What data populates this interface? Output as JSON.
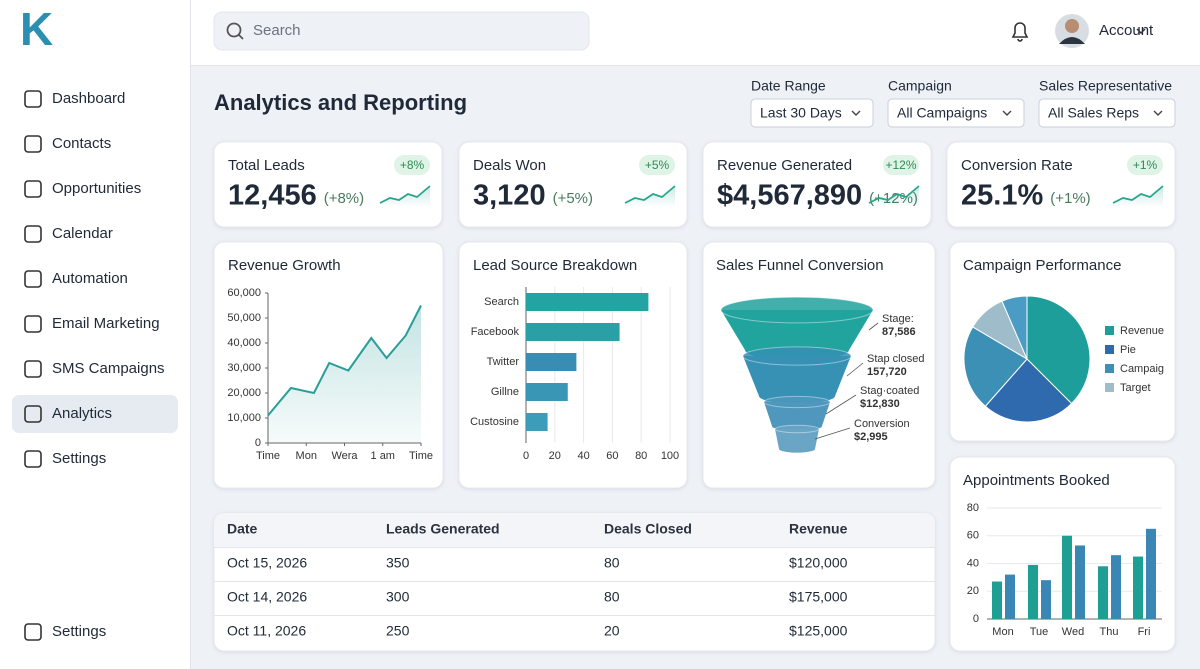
{
  "sidebar": {
    "logo": "K",
    "nav": [
      "Dashboard",
      "Contacts",
      "Opportunities",
      "Calendar",
      "Automation",
      "Email Marketing",
      "SMS Campaigns",
      "Analytics",
      "Settings"
    ],
    "active": 7,
    "footer": "Settings"
  },
  "header": {
    "search": "Search",
    "account": "Account"
  },
  "title": "Analytics and Reporting",
  "filters": [
    {
      "label": "Date Range",
      "value": "Last 30 Days"
    },
    {
      "label": "Campaign",
      "value": "All Campaigns"
    },
    {
      "label": "Sales Representative",
      "value": "All Sales Reps"
    }
  ],
  "kpis": [
    {
      "title": "Total Leads",
      "badge": "+8%",
      "value": "12,456",
      "change": "(+8%)"
    },
    {
      "title": "Deals Won",
      "badge": "+5%",
      "value": "3,120",
      "change": "(+5%)"
    },
    {
      "title": "Revenue Generated",
      "badge": "+12%",
      "value": "$4,567,890",
      "change": "(+12%)"
    },
    {
      "title": "Conversion Rate",
      "badge": "+1%",
      "value": "25.1%",
      "change": "(+1%)"
    }
  ],
  "charts": {
    "revenue_growth": {
      "type": "line",
      "title": "Revenue Growth",
      "color": "#2a9d99",
      "x": [
        0,
        0.6,
        1.2,
        1.6,
        2.1,
        2.7,
        3.1,
        3.6,
        4
      ],
      "values": [
        11000,
        22000,
        20000,
        32000,
        29000,
        42000,
        34000,
        43000,
        55000
      ],
      "xlim": [
        0,
        4
      ],
      "xticks": [
        {
          "value": 0,
          "label": "Time"
        },
        {
          "value": 1,
          "label": "Mon"
        },
        {
          "value": 2,
          "label": "Wera"
        },
        {
          "value": 3,
          "label": "1 am"
        },
        {
          "value": 4,
          "label": "Time"
        }
      ],
      "ylim": [
        0,
        60000
      ],
      "yticks": [
        0,
        {
          "value": 10000,
          "label": "10,000"
        },
        {
          "value": 20000,
          "label": "20,000"
        },
        {
          "value": 30000,
          "label": "30,000"
        },
        {
          "value": 40000,
          "label": "40,000"
        },
        {
          "value": 50000,
          "label": "50,000"
        },
        {
          "value": 60000,
          "label": "60,000"
        }
      ]
    },
    "lead_source": {
      "type": "hbar",
      "title": "Lead Source Breakdown",
      "categories": [
        "Search",
        "Facebook",
        "Twitter",
        "Gillne",
        "Custosine"
      ],
      "values": [
        85,
        65,
        35,
        29,
        15
      ],
      "colors": [
        "#23a3a2",
        "#2b9fa6",
        "#3a8db2",
        "#3996b5",
        "#3b9db8"
      ],
      "xlim": [
        0,
        100
      ],
      "xticks": [
        0,
        20,
        40,
        60,
        80,
        100
      ],
      "grid": true
    },
    "funnel": {
      "type": "funnel",
      "title": "Sales Funnel Conversion",
      "stages": [
        {
          "name": "Stage:",
          "value": "87,586"
        },
        {
          "name": "Stap closed",
          "value": "157,720"
        },
        {
          "name": "Stag·coated",
          "value": "$12,830"
        },
        {
          "name": "Conversion",
          "value": "$2,995"
        }
      ],
      "colors": [
        "#21a39e",
        "#3691b5",
        "#4f97bd",
        "#6aa5c6"
      ]
    },
    "campaign_performance": {
      "type": "pie",
      "title": "Campaign Performance",
      "categories": [
        "Revenue",
        "Pie",
        "Campaig",
        "Target",
        null
      ],
      "values": [
        37.5,
        24,
        22,
        10,
        6.5
      ],
      "colors": [
        "#1d9e9b",
        "#2f6aae",
        "#3c8fb5",
        "#9fbccb",
        "#4a9cc4"
      ]
    },
    "appointments": {
      "type": "bar",
      "title": "Appointments Booked",
      "categories": [
        "Mon",
        "Tue",
        "Wed",
        "Thu",
        "Fri"
      ],
      "series": [
        {
          "color": "#1f9e94",
          "values": [
            27,
            39,
            60,
            38,
            45
          ]
        },
        {
          "color": "#3a86b4",
          "values": [
            32,
            28,
            53,
            46,
            65
          ]
        }
      ],
      "ylim": [
        0,
        80
      ],
      "yticks": [
        0,
        20,
        40,
        60,
        80
      ],
      "grid": true
    }
  },
  "table": {
    "columns": [
      "Date",
      "Leads Generated",
      "Deals Closed",
      "Revenue"
    ],
    "rows": [
      [
        "Oct 15, 2026",
        "350",
        "80",
        "$120,000"
      ],
      [
        "Oct 14, 2026",
        "300",
        "80",
        "$175,000"
      ],
      [
        "Oct 11, 2026",
        "250",
        "20",
        "$125,000"
      ]
    ]
  }
}
